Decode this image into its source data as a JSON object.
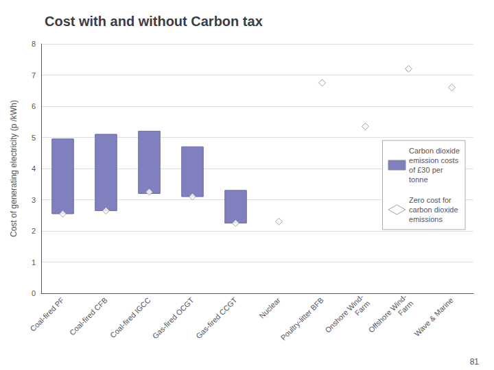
{
  "chart_data": {
    "type": "bar",
    "title": "Cost with and without Carbon tax",
    "ylabel": "Cost of generating electricity (p /kWh)",
    "categories": [
      "Coal-fired PF",
      "Coal-fired CFB",
      "Coal-fired IGCC",
      "Gas-fired OCGT",
      "Gas-fired CCGT",
      "Nuclear",
      "Poultry-litter BFB",
      "Onshore Wind-\nFarm",
      "Offshore Wind-\nFarm",
      "Wave & Marine"
    ],
    "series": [
      {
        "name": "Carbon dioxide\nemission costs\nof £30 per\ntonne",
        "type": "bar",
        "color": "#8080BF",
        "values": [
          [
            2.55,
            4.95
          ],
          [
            2.65,
            5.1
          ],
          [
            3.2,
            5.2
          ],
          [
            3.1,
            4.7
          ],
          [
            2.25,
            3.3
          ],
          null,
          null,
          null,
          null,
          null
        ]
      },
      {
        "name": "Zero cost for\ncarbon dioxide\nemissions",
        "type": "scatter",
        "marker": "diamond",
        "color": "#FFFFFF",
        "values": [
          2.55,
          2.65,
          3.25,
          3.1,
          2.25,
          2.3,
          6.75,
          5.35,
          7.2,
          6.6
        ]
      }
    ],
    "ylim": [
      0.0,
      8.0
    ],
    "yticks": [
      0,
      1,
      2,
      3,
      4,
      5,
      6,
      7,
      8
    ],
    "grid": true,
    "legend": "right",
    "annotations": [
      "81"
    ]
  }
}
